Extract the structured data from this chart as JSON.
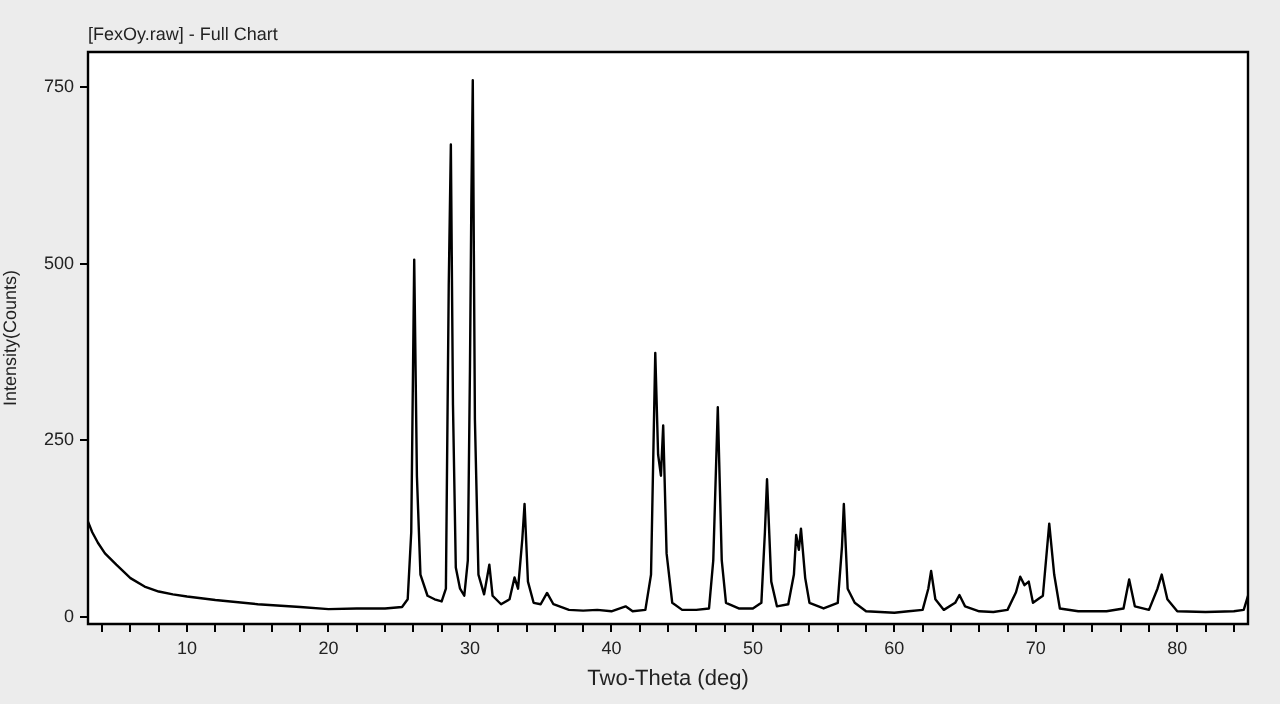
{
  "chart_data": {
    "type": "line",
    "title": "[FexOy.raw] - Full Chart",
    "xlabel": "Two-Theta (deg)",
    "ylabel": "Intensity(Counts)",
    "xlim": [
      3,
      85
    ],
    "ylim": [
      -10,
      800
    ],
    "xticks": [
      {
        "value": 4,
        "label": null
      },
      {
        "value": 6,
        "label": null
      },
      {
        "value": 8,
        "label": null
      },
      10,
      {
        "value": 12,
        "label": null
      },
      {
        "value": 14,
        "label": null
      },
      {
        "value": 16,
        "label": null
      },
      {
        "value": 18,
        "label": null
      },
      20,
      {
        "value": 22,
        "label": null
      },
      {
        "value": 24,
        "label": null
      },
      {
        "value": 26,
        "label": null
      },
      {
        "value": 28,
        "label": null
      },
      30,
      {
        "value": 32,
        "label": null
      },
      {
        "value": 34,
        "label": null
      },
      {
        "value": 36,
        "label": null
      },
      {
        "value": 38,
        "label": null
      },
      40,
      {
        "value": 42,
        "label": null
      },
      {
        "value": 44,
        "label": null
      },
      {
        "value": 46,
        "label": null
      },
      {
        "value": 48,
        "label": null
      },
      50,
      {
        "value": 52,
        "label": null
      },
      {
        "value": 54,
        "label": null
      },
      {
        "value": 56,
        "label": null
      },
      {
        "value": 58,
        "label": null
      },
      60,
      {
        "value": 62,
        "label": null
      },
      {
        "value": 64,
        "label": null
      },
      {
        "value": 66,
        "label": null
      },
      {
        "value": 68,
        "label": null
      },
      70,
      {
        "value": 72,
        "label": null
      },
      {
        "value": 74,
        "label": null
      },
      {
        "value": 76,
        "label": null
      },
      {
        "value": 78,
        "label": null
      },
      80,
      {
        "value": 82,
        "label": null
      },
      {
        "value": 84,
        "label": null
      }
    ],
    "yticks": [
      0,
      250,
      500,
      750
    ],
    "grid": false,
    "legend": false,
    "marker": "none",
    "line_style": "solid",
    "series": [
      {
        "color": "#000000",
        "x": [
          3,
          3.3,
          3.7,
          4.2,
          5,
          6,
          7,
          8,
          9,
          10,
          12,
          15,
          18,
          20,
          22,
          24,
          25.2,
          25.6,
          25.85,
          26.06,
          26.25,
          26.5,
          27,
          27.5,
          28,
          28.3,
          28.5,
          28.65,
          28.8,
          29.0,
          29.3,
          29.6,
          29.85,
          30.0,
          30.1,
          30.2,
          30.35,
          30.6,
          31,
          31.37,
          31.6,
          32.2,
          32.8,
          33.15,
          33.4,
          33.7,
          33.86,
          34.1,
          34.5,
          35,
          35.45,
          35.9,
          37,
          38,
          39,
          40,
          41,
          41.5,
          42.4,
          42.8,
          43.1,
          43.3,
          43.5,
          43.66,
          43.9,
          44.3,
          45,
          46,
          46.9,
          47.2,
          47.52,
          47.8,
          48.1,
          49,
          50,
          50.6,
          50.85,
          51.0,
          51.3,
          51.7,
          52.5,
          52.9,
          53.06,
          53.25,
          53.4,
          53.7,
          54,
          55,
          56,
          56.3,
          56.43,
          56.7,
          57.2,
          58,
          60,
          61,
          62,
          62.4,
          62.6,
          62.9,
          63.5,
          64.3,
          64.6,
          65,
          66,
          67,
          68,
          68.6,
          68.9,
          69.2,
          69.5,
          69.8,
          70.5,
          70.95,
          71.3,
          71.7,
          73,
          75,
          76.2,
          76.6,
          77,
          78,
          78.6,
          78.9,
          79.3,
          80,
          82,
          84,
          84.7,
          85
        ],
        "values": [
          135,
          120,
          105,
          90,
          74,
          55,
          43,
          36,
          32,
          29,
          24,
          18,
          14,
          11,
          12,
          12,
          14,
          25,
          120,
          506,
          200,
          60,
          30,
          25,
          22,
          40,
          469,
          669,
          300,
          70,
          40,
          30,
          80,
          350,
          590,
          760,
          280,
          60,
          32,
          74,
          30,
          18,
          25,
          56,
          40,
          110,
          160,
          50,
          20,
          18,
          34,
          18,
          10,
          9,
          10,
          8,
          15,
          8,
          10,
          60,
          374,
          230,
          200,
          271,
          90,
          20,
          10,
          10,
          12,
          80,
          297,
          80,
          20,
          12,
          12,
          20,
          120,
          195,
          50,
          15,
          18,
          60,
          116,
          95,
          125,
          55,
          20,
          12,
          20,
          100,
          160,
          40,
          20,
          8,
          6,
          8,
          10,
          40,
          65,
          25,
          10,
          20,
          31,
          15,
          8,
          7,
          10,
          35,
          57,
          45,
          50,
          20,
          30,
          132,
          60,
          12,
          8,
          8,
          12,
          53,
          15,
          10,
          40,
          60,
          25,
          8,
          7,
          8,
          10,
          30
        ]
      }
    ]
  }
}
